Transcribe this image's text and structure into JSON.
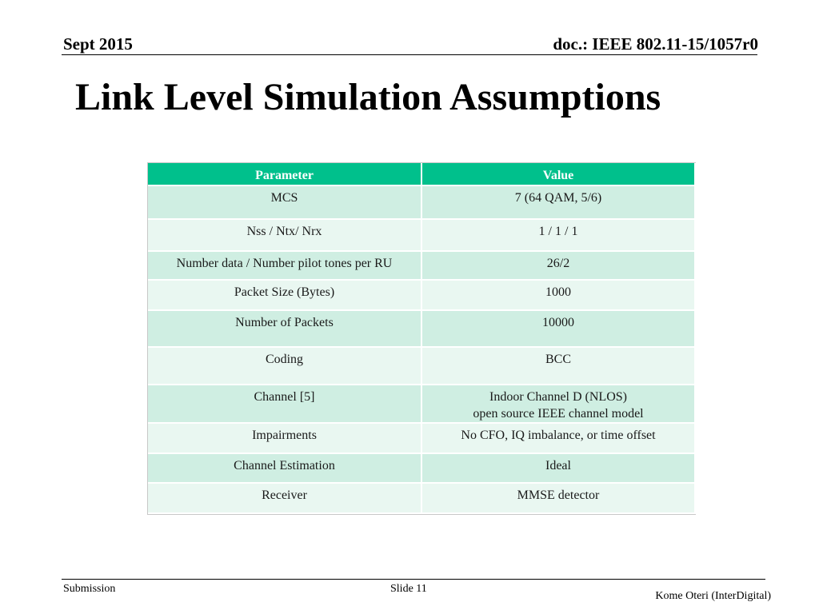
{
  "header": {
    "date": "Sept 2015",
    "doc_id": "doc.: IEEE 802.11-15/1057r0"
  },
  "slide": {
    "title": "Link Level Simulation Assumptions"
  },
  "table": {
    "headers": [
      "Parameter",
      "Value"
    ],
    "rows": [
      {
        "parameter": "MCS",
        "value": "7 (64 QAM, 5/6)"
      },
      {
        "parameter": "Nss / Ntx/ Nrx",
        "value": "1 / 1 / 1"
      },
      {
        "parameter": "Number data / Number pilot tones per RU",
        "value": "26/2"
      },
      {
        "parameter": "Packet Size (Bytes)",
        "value": "1000"
      },
      {
        "parameter": "Number of Packets",
        "value": "10000"
      },
      {
        "parameter": "Coding",
        "value": "BCC"
      },
      {
        "parameter": "Channel [5]",
        "value": "Indoor Channel D (NLOS)",
        "value_line2": "open source IEEE channel model"
      },
      {
        "parameter": "Impairments",
        "value": "No CFO, IQ imbalance, or time offset"
      },
      {
        "parameter": "Channel Estimation",
        "value": "Ideal"
      },
      {
        "parameter": "Receiver",
        "value": "MMSE detector"
      }
    ]
  },
  "footer": {
    "left": "Submission",
    "center": "Slide 11",
    "right": "Kome Oteri (InterDigital)"
  },
  "colors": {
    "header_bg": "#00c08c",
    "row_dark": "#cfeee2",
    "row_light": "#e9f7f1"
  }
}
